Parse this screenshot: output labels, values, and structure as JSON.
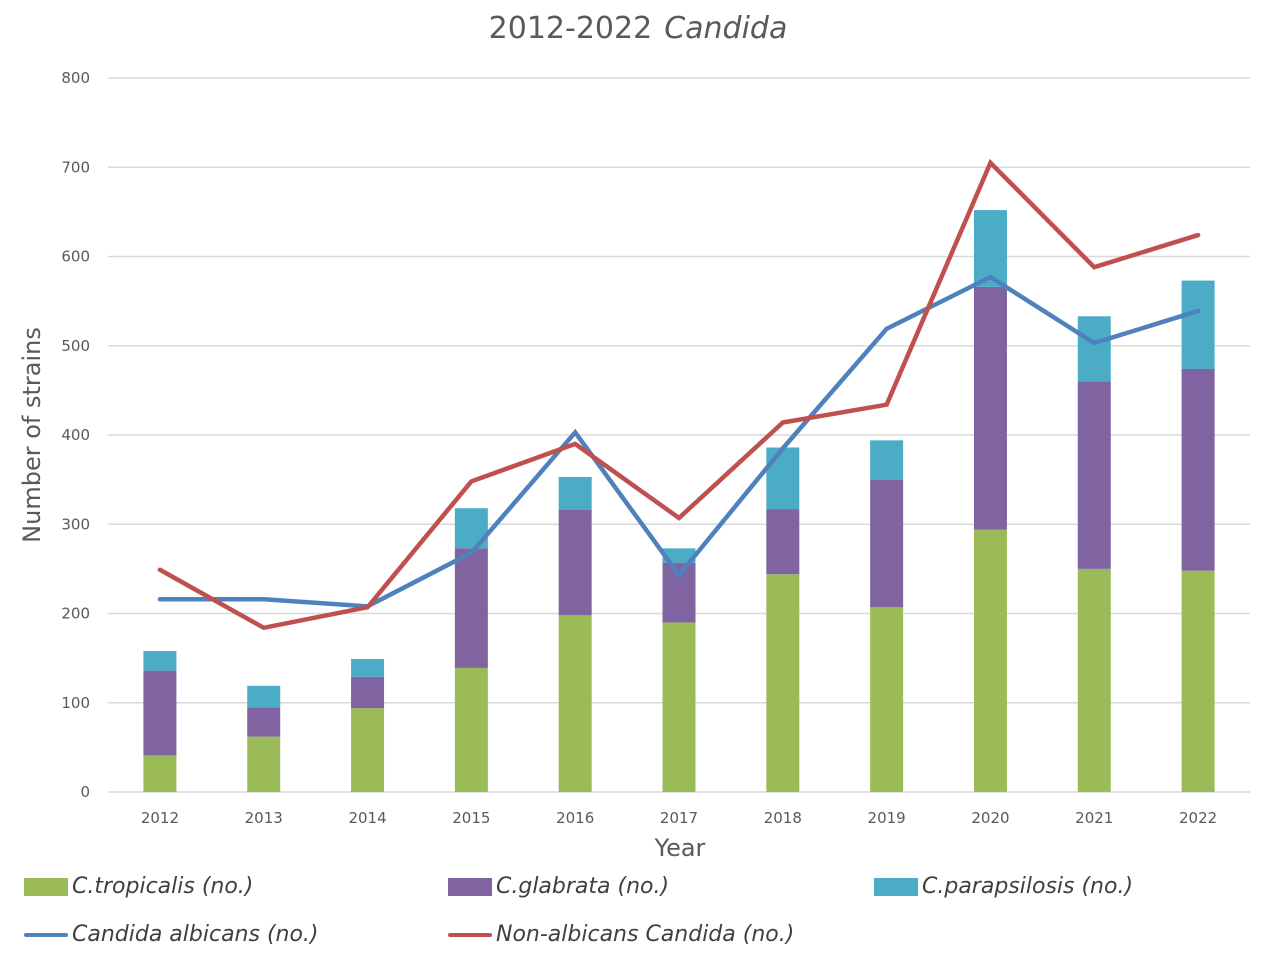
{
  "chart_data": {
    "type": "bar",
    "subtype": "stacked-bar-with-lines",
    "title": "2012-2022",
    "title_italic": "Candida",
    "xlabel": "Year",
    "ylabel": "Number of strains",
    "ylim": [
      0,
      800
    ],
    "yticks": [
      0,
      100,
      200,
      300,
      400,
      500,
      600,
      700,
      800
    ],
    "ytick_labels": [
      "0",
      "100",
      "200",
      "300",
      "400",
      "500",
      "600",
      "700",
      "800"
    ],
    "grid": true,
    "legend_position": "bottom",
    "categories": [
      "2012",
      "2013",
      "2014",
      "2015",
      "2016",
      "2017",
      "2018",
      "2019",
      "2020",
      "2021",
      "2022"
    ],
    "bar_series": [
      {
        "name": "C.tropicalis (no.)",
        "color": "#9bbb59",
        "values": [
          41,
          62,
          94,
          139,
          198,
          190,
          244,
          207,
          294,
          250,
          248
        ]
      },
      {
        "name": "C.glabrata (no.)",
        "color": "#8064a2",
        "values": [
          95,
          33,
          35,
          134,
          118,
          67,
          73,
          143,
          272,
          210,
          226
        ]
      },
      {
        "name": "C.parapsilosis (no.)",
        "color": "#4bacc6",
        "values": [
          22,
          24,
          20,
          45,
          37,
          16,
          69,
          44,
          86,
          73,
          99
        ]
      }
    ],
    "line_series": [
      {
        "name": "Candida albicans (no.)",
        "color": "#4f81bd",
        "values": [
          216,
          216,
          208,
          268,
          403,
          243,
          385,
          519,
          577,
          503,
          539
        ]
      },
      {
        "name": "Non-albicans Candida  (no.)",
        "color": "#c0504d",
        "values": [
          249,
          184,
          207,
          348,
          390,
          307,
          414,
          434,
          705,
          588,
          624
        ]
      }
    ]
  }
}
